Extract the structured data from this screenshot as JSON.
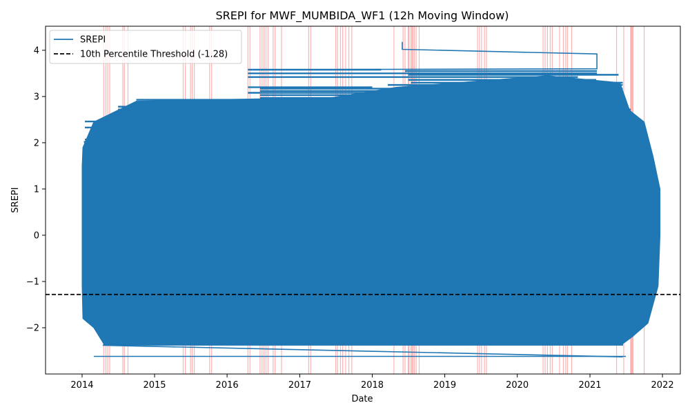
{
  "chart_data": {
    "type": "line",
    "title": "SREPI for MWF_MUMBIDA_WF1 (12h Moving Window)",
    "xlabel": "Date",
    "ylabel": "SREPI",
    "xlim": [
      "2013-07-01",
      "2022-04-01"
    ],
    "ylim": [
      -3.0,
      4.52
    ],
    "x_ticks": [
      "2014",
      "2015",
      "2016",
      "2017",
      "2018",
      "2019",
      "2020",
      "2021",
      "2022"
    ],
    "y_ticks": [
      {
        "value": -2,
        "label": "−2"
      },
      {
        "value": -1,
        "label": "−1"
      },
      {
        "value": 0,
        "label": "0"
      },
      {
        "value": 1,
        "label": "1"
      },
      {
        "value": 2,
        "label": "2"
      },
      {
        "value": 3,
        "label": "3"
      },
      {
        "value": 4,
        "label": "4"
      }
    ],
    "grid": false,
    "legend_position": "upper-left",
    "series": [
      {
        "name": "SREPI",
        "color": "#1f77b4",
        "value_range": [
          -2.63,
          4.18
        ],
        "band_left_edge": [
          {
            "x": "2014-01-05",
            "y": 1.9
          },
          {
            "x": "2014-01-01",
            "y": 1.5
          },
          {
            "x": "2014-01-01",
            "y": 0.0
          },
          {
            "x": "2014-01-01",
            "y": -1.1
          },
          {
            "x": "2014-01-05",
            "y": -1.8
          },
          {
            "x": "2014-03-01",
            "y": -2.0
          },
          {
            "x": "2014-04-20",
            "y": -2.35
          }
        ],
        "band_right_edge": [
          {
            "x": "2021-11-15",
            "y": 1.7
          },
          {
            "x": "2021-12-20",
            "y": 1.0
          },
          {
            "x": "2021-12-20",
            "y": 0.0
          },
          {
            "x": "2021-12-10",
            "y": -1.1
          },
          {
            "x": "2021-10-20",
            "y": -1.9
          },
          {
            "x": "2021-08-01",
            "y": -2.2
          },
          {
            "x": "2021-06-15",
            "y": -2.35
          }
        ],
        "band_top_edge": [
          {
            "x": "2014-03-01",
            "y": 2.45
          },
          {
            "x": "2014-10-01",
            "y": 2.9
          },
          {
            "x": "2016-06-01",
            "y": 2.95
          },
          {
            "x": "2017-05-01",
            "y": 2.95
          },
          {
            "x": "2018-05-01",
            "y": 3.2
          },
          {
            "x": "2019-01-01",
            "y": 3.28
          },
          {
            "x": "2020-06-01",
            "y": 3.45
          },
          {
            "x": "2021-06-01",
            "y": 3.3
          },
          {
            "x": "2021-07-20",
            "y": 2.7
          },
          {
            "x": "2021-10-01",
            "y": 2.45
          }
        ],
        "band_bottom_y": -2.38,
        "notable_segments": [
          {
            "x": [
              "2018-06-01",
              "2018-06-01",
              "2021-02-05",
              "2021-02-05",
              "2016-06-01"
            ],
            "y": [
              4.18,
              4.02,
              3.92,
              3.6,
              3.58
            ]
          },
          {
            "x": [
              "2014-04-15",
              "2021-06-15"
            ],
            "y": [
              -2.38,
              -2.63
            ]
          },
          {
            "x": [
              "2014-03-01",
              "2021-07-01"
            ],
            "y": [
              -2.62,
              -2.62
            ]
          }
        ],
        "horizontal_traces": [
          {
            "y": 3.58,
            "x": [
              "2016-04-15",
              "2018-02-15"
            ]
          },
          {
            "y": 3.55,
            "x": [
              "2018-06-15",
              "2021-02-05"
            ]
          },
          {
            "y": 3.5,
            "x": [
              "2016-04-15",
              "2021-02-05"
            ]
          },
          {
            "y": 3.47,
            "x": [
              "2018-07-01",
              "2021-05-25"
            ]
          },
          {
            "y": 3.42,
            "x": [
              "2016-04-15",
              "2020-11-01"
            ]
          },
          {
            "y": 3.36,
            "x": [
              "2018-07-01",
              "2021-02-01"
            ]
          },
          {
            "y": 3.3,
            "x": [
              "2018-07-15",
              "2021-06-15"
            ]
          },
          {
            "y": 3.25,
            "x": [
              "2018-03-20",
              "2021-06-15"
            ]
          },
          {
            "y": 3.2,
            "x": [
              "2016-04-15",
              "2018-01-01"
            ]
          },
          {
            "y": 3.17,
            "x": [
              "2016-06-15",
              "2021-06-15"
            ]
          },
          {
            "y": 3.12,
            "x": [
              "2016-06-15",
              "2021-01-01"
            ]
          },
          {
            "y": 3.08,
            "x": [
              "2016-04-15",
              "2021-01-01"
            ]
          },
          {
            "y": 3.03,
            "x": [
              "2016-06-15",
              "2020-12-01"
            ]
          },
          {
            "y": 2.97,
            "x": [
              "2016-06-15",
              "2021-06-15"
            ]
          },
          {
            "y": 2.93,
            "x": [
              "2014-10-01",
              "2017-11-15"
            ]
          },
          {
            "y": 2.88,
            "x": [
              "2015-01-01",
              "2021-06-15"
            ]
          },
          {
            "y": 2.83,
            "x": [
              "2015-03-01",
              "2017-01-01"
            ]
          },
          {
            "y": 2.78,
            "x": [
              "2014-07-01",
              "2021-06-15"
            ]
          },
          {
            "y": 2.72,
            "x": [
              "2014-07-01",
              "2021-07-25"
            ]
          },
          {
            "y": 2.65,
            "x": [
              "2014-07-01",
              "2021-07-25"
            ]
          },
          {
            "y": 2.58,
            "x": [
              "2014-06-01",
              "2021-07-25"
            ]
          },
          {
            "y": 2.52,
            "x": [
              "2014-06-01",
              "2021-08-01"
            ]
          },
          {
            "y": 2.46,
            "x": [
              "2014-01-15",
              "2021-08-15"
            ]
          },
          {
            "y": 2.4,
            "x": [
              "2014-04-01",
              "2021-09-01"
            ]
          },
          {
            "y": 2.33,
            "x": [
              "2014-01-15",
              "2021-09-01"
            ]
          },
          {
            "y": 2.27,
            "x": [
              "2014-03-01",
              "2021-09-10"
            ]
          },
          {
            "y": 2.2,
            "x": [
              "2014-05-01",
              "2021-09-20"
            ]
          },
          {
            "y": 2.13,
            "x": [
              "2014-05-01",
              "2021-09-20"
            ]
          },
          {
            "y": 2.07,
            "x": [
              "2014-01-15",
              "2021-10-01"
            ]
          },
          {
            "y": 2.02,
            "x": [
              "2014-01-10",
              "2021-10-01"
            ]
          }
        ]
      },
      {
        "name": "10th Percentile Threshold (-1.28)",
        "color": "#000000",
        "style": "dashed",
        "y": -1.28
      }
    ],
    "event_lines": {
      "color": "#ff0000",
      "x": [
        "2014-04-20",
        "2014-05-01",
        "2014-05-10",
        "2014-05-20",
        "2014-07-25",
        "2014-08-02",
        "2014-08-20",
        "2015-05-25",
        "2015-06-05",
        "2015-07-01",
        "2015-07-10",
        "2015-07-20",
        "2015-10-05",
        "2015-10-15",
        "2016-04-15",
        "2016-04-25",
        "2016-06-15",
        "2016-06-25",
        "2016-07-05",
        "2016-07-15",
        "2016-07-25",
        "2016-08-20",
        "2016-08-30",
        "2016-10-01",
        "2017-02-15",
        "2017-02-25",
        "2017-07-01",
        "2017-07-10",
        "2017-07-25",
        "2017-08-05",
        "2017-08-20",
        "2017-09-05",
        "2017-09-20",
        "2018-04-20",
        "2018-06-05",
        "2018-06-15",
        "2018-07-01",
        "2018-07-05",
        "2018-07-15",
        "2018-07-20",
        "2018-07-25",
        "2018-08-01",
        "2018-08-10",
        "2018-08-25",
        "2019-06-15",
        "2019-06-25",
        "2019-07-05",
        "2019-07-20",
        "2019-07-30",
        "2020-05-10",
        "2020-05-20",
        "2020-06-01",
        "2020-06-15",
        "2020-06-25",
        "2020-08-01",
        "2020-08-20",
        "2020-09-01",
        "2020-09-10",
        "2020-10-01",
        "2021-05-15",
        "2021-06-20",
        "2021-07-25",
        "2021-07-28",
        "2021-08-02",
        "2021-08-06",
        "2021-10-01"
      ]
    }
  }
}
